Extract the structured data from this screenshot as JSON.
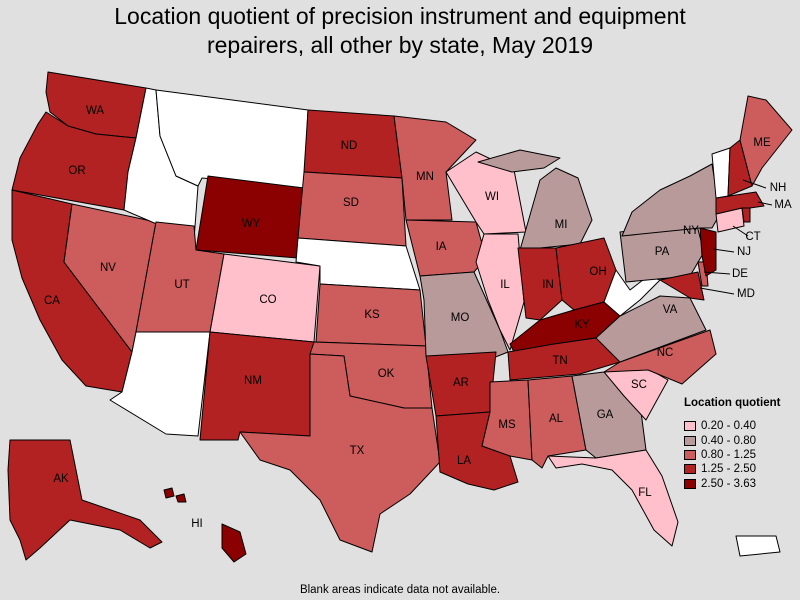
{
  "title": "Location quotient of precision instrument and equipment repairers, all other by state, May 2019",
  "title_lines": [
    "Location quotient of precision instrument and equipment",
    "repairers, all other by state, May 2019"
  ],
  "legend": {
    "title": "Location quotient",
    "bins": [
      {
        "label": "0.20 - 0.40",
        "color": "#ffc0cb"
      },
      {
        "label": "0.40 - 0.80",
        "color": "#b89a9a"
      },
      {
        "label": "0.80 - 1.25",
        "color": "#cd5c5c"
      },
      {
        "label": "1.25 - 2.50",
        "color": "#b22222"
      },
      {
        "label": "2.50 - 3.63",
        "color": "#8b0000"
      }
    ]
  },
  "colors": {
    "no_data": "#ffffff",
    "background": "#e0e0e0"
  },
  "footnote": "Blank areas indicate data not available.",
  "states": {
    "WA": "1.25 - 2.50",
    "OR": "1.25 - 2.50",
    "CA": "1.25 - 2.50",
    "NV": "0.80 - 1.25",
    "ID": null,
    "MT": null,
    "WY": "2.50 - 3.63",
    "UT": "0.80 - 1.25",
    "AZ": null,
    "CO": "0.20 - 0.40",
    "NM": "1.25 - 2.50",
    "ND": "1.25 - 2.50",
    "SD": "0.80 - 1.25",
    "NE": null,
    "KS": "0.80 - 1.25",
    "OK": "0.80 - 1.25",
    "TX": "0.80 - 1.25",
    "MN": "0.80 - 1.25",
    "IA": "0.80 - 1.25",
    "MO": "0.40 - 0.80",
    "AR": "1.25 - 2.50",
    "LA": "1.25 - 2.50",
    "WI": "0.20 - 0.40",
    "IL": "0.20 - 0.40",
    "MI": "0.40 - 0.80",
    "IN": "1.25 - 2.50",
    "OH": "1.25 - 2.50",
    "KY": "2.50 - 3.63",
    "TN": "1.25 - 2.50",
    "MS": "0.80 - 1.25",
    "AL": "0.80 - 1.25",
    "GA": "0.40 - 0.80",
    "FL": "0.20 - 0.40",
    "SC": "0.20 - 0.40",
    "NC": "0.80 - 1.25",
    "VA": "0.40 - 0.80",
    "WV": null,
    "PA": "0.40 - 0.80",
    "NY": "0.40 - 0.80",
    "VT": null,
    "NH": "1.25 - 2.50",
    "ME": "0.80 - 1.25",
    "MA": "1.25 - 2.50",
    "CT": "0.20 - 0.40",
    "RI": "1.25 - 2.50",
    "NJ": "2.50 - 3.63",
    "DE": "0.80 - 1.25",
    "MD": "1.25 - 2.50",
    "AK": "1.25 - 2.50",
    "HI": "2.50 - 3.63",
    "PR": null
  },
  "labels": [
    "WA",
    "OR",
    "CA",
    "NV",
    "UT",
    "WY",
    "CO",
    "NM",
    "ND",
    "SD",
    "KS",
    "OK",
    "TX",
    "MN",
    "IA",
    "MO",
    "AR",
    "LA",
    "WI",
    "IL",
    "MI",
    "IN",
    "OH",
    "KY",
    "TN",
    "MS",
    "AL",
    "GA",
    "FL",
    "SC",
    "NC",
    "VA",
    "PA",
    "NY",
    "ME",
    "NH",
    "MA",
    "CT",
    "NJ",
    "DE",
    "MD",
    "AK",
    "HI"
  ]
}
